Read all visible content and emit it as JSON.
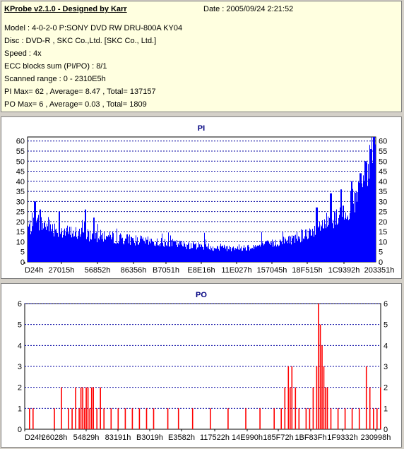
{
  "header": {
    "title": "KProbe v2.1.0 - Designed by Karr",
    "date": "Date : 2005/09/24 2:21:52"
  },
  "info_lines": [
    "Model : 4-0-2-0 P:SONY    DVD RW DRU-800A  KY04",
    "Disc : DVD-R , SKC Co.,Ltd. [SKC Co., Ltd.]",
    "Speed : 4x",
    "ECC blocks sum (PI/PO) : 8/1",
    "Scanned range : 0 - 2310E5h",
    "PI Max= 62 , Average= 8.47 , Total= 137157",
    "PO Max= 6 , Average= 0.03 , Total= 1809"
  ],
  "colors": {
    "bars": "#0000ff",
    "po_bars": "#ff0000",
    "grid": "#0000a0",
    "panel_bg": "#ffffff",
    "info_bg": "#ffffe0"
  },
  "chart_data": [
    {
      "type": "bar",
      "title": "PI",
      "x_tick_labels": [
        "D24h",
        "27015h",
        "56852h",
        "86356h",
        "B7051h",
        "E8E16h",
        "11E027h",
        "157045h",
        "18F515h",
        "1C9392h",
        "203351h"
      ],
      "yticks": [
        0,
        5,
        10,
        15,
        20,
        25,
        30,
        35,
        40,
        45,
        50,
        55,
        60
      ],
      "ylim": [
        0,
        62
      ],
      "grid": true,
      "profile": [
        [
          0,
          17
        ],
        [
          0.03,
          19
        ],
        [
          0.06,
          18
        ],
        [
          0.1,
          15
        ],
        [
          0.15,
          14
        ],
        [
          0.2,
          13
        ],
        [
          0.25,
          12
        ],
        [
          0.3,
          11
        ],
        [
          0.35,
          10
        ],
        [
          0.4,
          9.5
        ],
        [
          0.45,
          8.5
        ],
        [
          0.5,
          8
        ],
        [
          0.55,
          7
        ],
        [
          0.6,
          7
        ],
        [
          0.65,
          7.5
        ],
        [
          0.7,
          9
        ],
        [
          0.75,
          11
        ],
        [
          0.8,
          14
        ],
        [
          0.84,
          18
        ],
        [
          0.88,
          22
        ],
        [
          0.91,
          26
        ],
        [
          0.94,
          30
        ],
        [
          0.96,
          36
        ],
        [
          0.98,
          45
        ],
        [
          0.99,
          55
        ],
        [
          1.0,
          60
        ]
      ],
      "peaks": [
        [
          0.02,
          30
        ],
        [
          0.035,
          26
        ],
        [
          0.09,
          25
        ],
        [
          0.165,
          26
        ],
        [
          0.19,
          22
        ],
        [
          0.83,
          27
        ],
        [
          0.87,
          34
        ],
        [
          0.9,
          36
        ],
        [
          0.93,
          40
        ],
        [
          0.955,
          44
        ],
        [
          0.97,
          50
        ],
        [
          0.985,
          56
        ],
        [
          0.995,
          62
        ]
      ]
    },
    {
      "type": "bar",
      "title": "PO",
      "x_tick_labels": [
        "D24h",
        "26028h",
        "54829h",
        "83191h",
        "B3019h",
        "E3582h",
        "117522h",
        "14E990h",
        "185F72h",
        "1BF83Fh",
        "1F9332h",
        "230998h"
      ],
      "yticks": [
        0,
        1,
        2,
        3,
        4,
        5,
        6
      ],
      "ylim": [
        0,
        6
      ],
      "grid": true,
      "points": [
        [
          0.01,
          1
        ],
        [
          0.02,
          1
        ],
        [
          0.08,
          1
        ],
        [
          0.1,
          2
        ],
        [
          0.12,
          1
        ],
        [
          0.13,
          1
        ],
        [
          0.14,
          2
        ],
        [
          0.15,
          1
        ],
        [
          0.155,
          2
        ],
        [
          0.16,
          2
        ],
        [
          0.165,
          1
        ],
        [
          0.17,
          2
        ],
        [
          0.175,
          2
        ],
        [
          0.18,
          1
        ],
        [
          0.185,
          2
        ],
        [
          0.19,
          2
        ],
        [
          0.2,
          1
        ],
        [
          0.21,
          2
        ],
        [
          0.22,
          1
        ],
        [
          0.24,
          1
        ],
        [
          0.26,
          1
        ],
        [
          0.28,
          1
        ],
        [
          0.3,
          1
        ],
        [
          0.32,
          1
        ],
        [
          0.34,
          1
        ],
        [
          0.36,
          1
        ],
        [
          0.4,
          1
        ],
        [
          0.43,
          1
        ],
        [
          0.47,
          1
        ],
        [
          0.52,
          1
        ],
        [
          0.57,
          1
        ],
        [
          0.62,
          1
        ],
        [
          0.66,
          1
        ],
        [
          0.7,
          1
        ],
        [
          0.72,
          1
        ],
        [
          0.73,
          2
        ],
        [
          0.74,
          3
        ],
        [
          0.745,
          2
        ],
        [
          0.75,
          3
        ],
        [
          0.76,
          2
        ],
        [
          0.77,
          1
        ],
        [
          0.79,
          1
        ],
        [
          0.8,
          1
        ],
        [
          0.81,
          2
        ],
        [
          0.82,
          3
        ],
        [
          0.825,
          6
        ],
        [
          0.83,
          5
        ],
        [
          0.835,
          4
        ],
        [
          0.84,
          3
        ],
        [
          0.845,
          2
        ],
        [
          0.85,
          2
        ],
        [
          0.86,
          1
        ],
        [
          0.88,
          1
        ],
        [
          0.9,
          1
        ],
        [
          0.92,
          1
        ],
        [
          0.94,
          1
        ],
        [
          0.96,
          3
        ],
        [
          0.97,
          2
        ],
        [
          0.98,
          1
        ],
        [
          0.99,
          1
        ],
        [
          1.0,
          2
        ]
      ]
    }
  ]
}
